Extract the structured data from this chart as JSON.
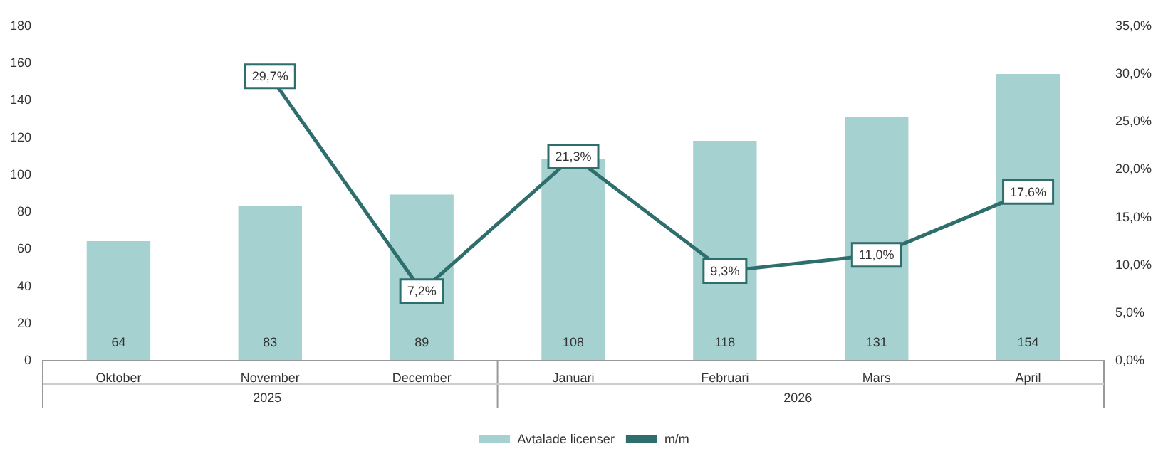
{
  "chart_data": {
    "type": "bar",
    "categories": [
      "Oktober",
      "November",
      "December",
      "Januari",
      "Februari",
      "Mars",
      "April"
    ],
    "series": [
      {
        "name": "Avtalade licenser",
        "color": "#a6d1d1",
        "values": [
          64,
          83,
          89,
          108,
          118,
          131,
          154
        ],
        "data_labels": true
      },
      {
        "name": "m/m",
        "type": "line",
        "axis": "y2",
        "color": "#2e6e6c",
        "values": [
          null,
          29.7,
          7.2,
          21.3,
          9.3,
          11.0,
          17.6
        ],
        "value_labels": [
          null,
          "29,7%",
          "7,2%",
          "21,3%",
          "9,3%",
          "11,0%",
          "17,6%"
        ],
        "marker": "square"
      }
    ],
    "ylim": [
      0,
      180
    ],
    "yticks": [
      0,
      20,
      40,
      60,
      80,
      100,
      120,
      140,
      160,
      180
    ],
    "y2lim": [
      0,
      35
    ],
    "y2ticks": [
      {
        "value": 0,
        "label": "0,0%"
      },
      {
        "value": 5,
        "label": "5,0%"
      },
      {
        "value": 10,
        "label": "10,0%"
      },
      {
        "value": 15,
        "label": "15,0%"
      },
      {
        "value": 20,
        "label": "20,0%"
      },
      {
        "value": 25,
        "label": "25,0%"
      },
      {
        "value": 30,
        "label": "30,0%"
      },
      {
        "value": 35,
        "label": "35,0%"
      }
    ],
    "annotations": [
      "2025",
      "2026"
    ],
    "grid": false,
    "legend": "bottom"
  }
}
